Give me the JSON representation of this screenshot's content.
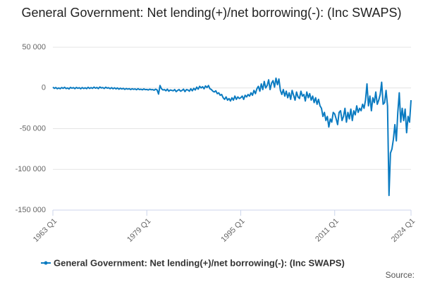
{
  "chart_data": {
    "type": "line",
    "title": "General Government: Net lending(+)/net borrowing(-): (Inc SWAPS)",
    "source": "Source:",
    "categories": [
      "1963 Q1",
      null,
      null,
      null,
      null,
      null,
      null,
      null,
      null,
      null,
      null,
      null,
      null,
      null,
      null,
      null,
      null,
      null,
      null,
      null,
      null,
      null,
      null,
      null,
      null,
      null,
      null,
      null,
      null,
      null,
      null,
      null,
      null,
      null,
      null,
      null,
      null,
      null,
      null,
      null,
      null,
      null,
      null,
      null,
      null,
      null,
      null,
      null,
      null,
      null,
      null,
      null,
      null,
      null,
      null,
      null,
      null,
      null,
      null,
      null,
      null,
      null,
      null,
      null,
      "1979 Q1",
      null,
      null,
      null,
      null,
      null,
      null,
      null,
      null,
      null,
      null,
      null,
      null,
      null,
      null,
      null,
      null,
      null,
      null,
      null,
      null,
      null,
      null,
      null,
      null,
      null,
      null,
      null,
      null,
      null,
      null,
      null,
      null,
      null,
      null,
      null,
      null,
      null,
      null,
      null,
      null,
      null,
      null,
      null,
      null,
      null,
      null,
      null,
      null,
      null,
      null,
      null,
      null,
      null,
      null,
      null,
      null,
      null,
      null,
      null,
      null,
      null,
      null,
      null,
      "1995 Q1",
      null,
      null,
      null,
      null,
      null,
      null,
      null,
      null,
      null,
      null,
      null,
      null,
      null,
      null,
      null,
      null,
      null,
      null,
      null,
      null,
      null,
      null,
      null,
      null,
      null,
      null,
      null,
      null,
      null,
      null,
      null,
      null,
      null,
      null,
      null,
      null,
      null,
      null,
      null,
      null,
      null,
      null,
      null,
      null,
      null,
      null,
      null,
      null,
      null,
      null,
      null,
      null,
      null,
      null,
      null,
      null,
      null,
      null,
      null,
      null,
      null,
      null,
      null,
      "2011 Q1",
      null,
      null,
      null,
      null,
      null,
      null,
      null,
      null,
      null,
      null,
      null,
      null,
      null,
      null,
      null,
      null,
      null,
      null,
      null,
      null,
      null,
      null,
      null,
      null,
      null,
      null,
      null,
      null,
      null,
      null,
      null,
      null,
      null,
      null,
      null,
      null,
      null,
      null,
      null,
      null,
      null,
      null,
      null,
      null,
      null,
      null,
      null,
      null,
      null,
      null,
      null,
      "2024 Q1"
    ],
    "series": [
      {
        "name": "General Government: Net lending(+)/net borrowing(-): (Inc SWAPS)",
        "color": "#0b7bc1",
        "values": [
          1000,
          -500,
          500,
          -1000,
          0,
          -1000,
          500,
          -500,
          800,
          -800,
          0,
          -1200,
          700,
          -300,
          400,
          -900,
          600,
          -400,
          300,
          -1000,
          500,
          -700,
          200,
          -900,
          800,
          -600,
          400,
          -500,
          1000,
          -300,
          600,
          -800,
          1200,
          0,
          500,
          -700,
          900,
          -200,
          300,
          -900,
          400,
          -1000,
          200,
          -1200,
          0,
          -1500,
          -300,
          -1300,
          -500,
          -1800,
          -700,
          -1500,
          -900,
          -2000,
          -1000,
          -1700,
          -1200,
          -2200,
          -900,
          -2000,
          -1500,
          -2300,
          -1200,
          -2100,
          -1800,
          -2500,
          -1500,
          -2200,
          -2000,
          -2800,
          -1500,
          -2400,
          -7500,
          3000,
          -1000,
          -2500,
          -2000,
          -3500,
          -1500,
          -4000,
          -2500,
          -3000,
          -3500,
          -2000,
          -4500,
          -3000,
          -2000,
          -4000,
          -3000,
          -1500,
          -4500,
          -2000,
          -2500,
          -4000,
          -1000,
          -3500,
          -500,
          -2500,
          1000,
          -1500,
          2000,
          0,
          1500,
          -1000,
          2500,
          500,
          3000,
          -1000,
          -2000,
          -4000,
          -5000,
          -3500,
          -7000,
          -6000,
          -9000,
          -8000,
          -12000,
          -14000,
          -11000,
          -15000,
          -13000,
          -16000,
          -12000,
          -15000,
          -10000,
          -14000,
          -11000,
          -13000,
          -12000,
          -10000,
          -14000,
          -9000,
          -11000,
          -8000,
          -10000,
          -6000,
          -9000,
          -3000,
          -7000,
          -1000,
          2000,
          -4000,
          5000,
          -2000,
          8000,
          0,
          3000,
          10000,
          -2000,
          6000,
          9000,
          1000,
          12000,
          4000,
          11000,
          -3000,
          -8000,
          -2000,
          -10000,
          -4000,
          -12000,
          -6000,
          -14000,
          -3000,
          -9000,
          -15000,
          -5000,
          -11000,
          -13000,
          -4000,
          -10000,
          -8000,
          -16000,
          -5000,
          -12000,
          -7000,
          -15000,
          -10000,
          -18000,
          -12000,
          -20000,
          -14000,
          -22000,
          -25000,
          -35000,
          -30000,
          -40000,
          -35000,
          -48000,
          -38000,
          -42000,
          -30000,
          -32000,
          -38000,
          -45000,
          -30000,
          -28000,
          -40000,
          -35000,
          -25000,
          -42000,
          -30000,
          -38000,
          -26000,
          -40000,
          -28000,
          -33000,
          -22000,
          -30000,
          -25000,
          -28000,
          -20000,
          -25000,
          -15000,
          5000,
          -22000,
          -10000,
          -28000,
          -12000,
          -18000,
          -5000,
          -20000,
          -15000,
          -8000,
          7000,
          -20000,
          -18000,
          -3000,
          -22000,
          -132000,
          -80000,
          -75000,
          -63000,
          -45000,
          -65000,
          -30000,
          -6000,
          -42000,
          -25000,
          -40000,
          -26000,
          -55000,
          -35000,
          -42000,
          -15000
        ]
      }
    ],
    "ylim": [
      -150000,
      50000
    ],
    "yticks": [
      {
        "value": -150000,
        "label": "-150 000"
      },
      {
        "value": -100000,
        "label": "-100 000"
      },
      {
        "value": -50000,
        "label": "-50 000"
      },
      0,
      {
        "value": 50000,
        "label": "50 000"
      }
    ],
    "grid": true,
    "legend": "bottom"
  }
}
